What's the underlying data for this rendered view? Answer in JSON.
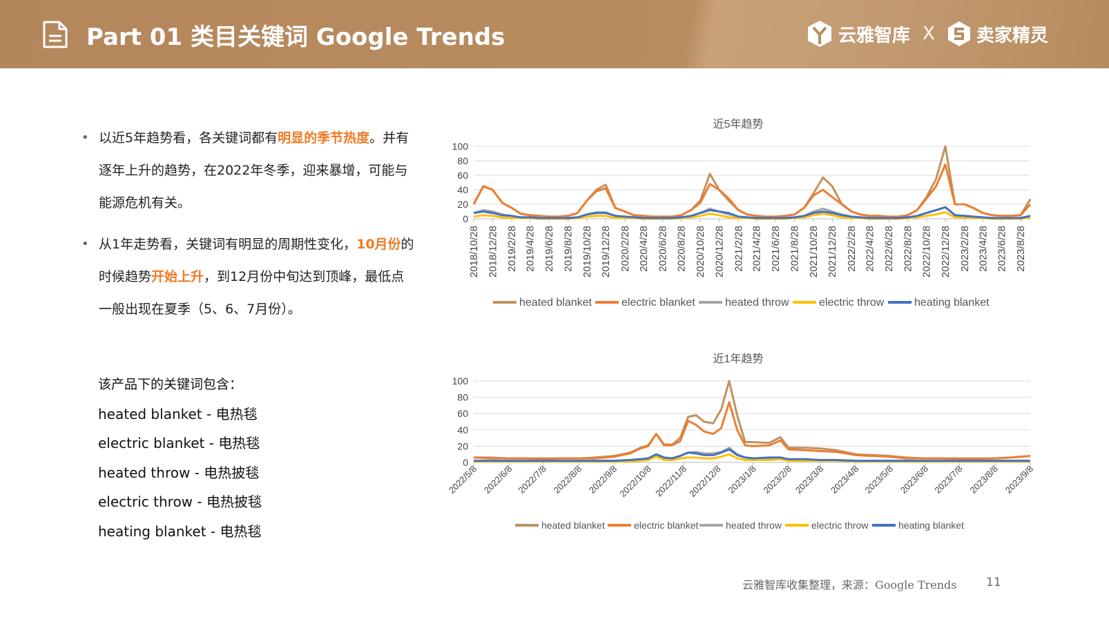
{
  "header": {
    "title": "Part 01 类目关键词 Google Trends",
    "logo_left": "云雅智库",
    "logo_sep": "X",
    "logo_right": "卖家精灵",
    "background_color": "#b78a5c"
  },
  "left": {
    "bullet1": {
      "pre": "以近5年趋势看，各关键词都有",
      "highlight": "明显的季节热度",
      "post": "。并有逐年上升的趋势，在2022年冬季，迎来暴增，可能与能源危机有关。"
    },
    "bullet2": {
      "pre": "从1年走势看，关键词有明显的周期性变化，",
      "highlight1": "10月份",
      "mid": "的时候趋势",
      "highlight2": "开始上升",
      "post": "，到12月份中旬达到顶峰，最低点一般出现在夏季（5、6、7月份）。"
    },
    "keywords_heading": "该产品下的关键词包含：",
    "keywords": [
      "heated blanket - 电热毯",
      "electric blanket - 电热毯",
      "heated throw - 电热披毯",
      "electric throw - 电热披毯",
      "heating blanket - 电热毯"
    ],
    "highlight_color": "#f07a24"
  },
  "footer": {
    "source": "云雅智库收集整理，来源：Google Trends",
    "page": "11"
  },
  "chart_data": [
    {
      "type": "line",
      "title": "近5年趋势",
      "ylim": [
        0,
        100
      ],
      "yticks": [
        0,
        20,
        40,
        60,
        80,
        100
      ],
      "grid": true,
      "legend": "bottom",
      "xticks": [
        "2018/10/28",
        "2018/12/28",
        "2019/2/28",
        "2019/4/28",
        "2019/6/28",
        "2019/8/28",
        "2019/10/28",
        "2019/12/28",
        "2020/2/28",
        "2020/4/28",
        "2020/6/28",
        "2020/8/28",
        "2020/10/28",
        "2020/12/28",
        "2021/2/28",
        "2021/4/28",
        "2021/6/28",
        "2021/8/28",
        "2021/10/28",
        "2021/12/28",
        "2022/2/28",
        "2022/4/28",
        "2022/6/28",
        "2022/8/28",
        "2022/10/28",
        "2022/12/28",
        "2023/2/28",
        "2023/4/28",
        "2023/6/28",
        "2023/8/28"
      ],
      "x_start": "2018/10/28",
      "x_step": "1 month",
      "series": [
        {
          "name": "heated blanket",
          "color": "#c0925f",
          "values": [
            20,
            45,
            40,
            22,
            15,
            7,
            5,
            4,
            3,
            3,
            4,
            8,
            25,
            40,
            47,
            15,
            10,
            5,
            4,
            3,
            3,
            3,
            5,
            12,
            25,
            62,
            40,
            25,
            12,
            6,
            4,
            3,
            3,
            4,
            6,
            15,
            35,
            57,
            45,
            20,
            10,
            6,
            4,
            4,
            3,
            3,
            5,
            12,
            30,
            55,
            100,
            20,
            20,
            15,
            8,
            5,
            4,
            4,
            5,
            27
          ]
        },
        {
          "name": "electric blanket",
          "color": "#ed7d31",
          "values": [
            20,
            45,
            40,
            22,
            15,
            7,
            5,
            4,
            3,
            3,
            4,
            8,
            25,
            38,
            42,
            15,
            10,
            5,
            4,
            3,
            3,
            3,
            5,
            12,
            22,
            48,
            40,
            28,
            12,
            6,
            4,
            3,
            3,
            4,
            6,
            15,
            32,
            40,
            30,
            20,
            10,
            6,
            4,
            4,
            3,
            3,
            5,
            12,
            28,
            45,
            75,
            20,
            20,
            15,
            8,
            5,
            4,
            4,
            5,
            20
          ]
        },
        {
          "name": "heated throw",
          "color": "#a5a5a5",
          "values": [
            8,
            12,
            10,
            6,
            4,
            2,
            2,
            1,
            1,
            1,
            1,
            2,
            6,
            9,
            9,
            4,
            3,
            2,
            1,
            1,
            1,
            1,
            2,
            4,
            8,
            14,
            10,
            6,
            3,
            2,
            1,
            1,
            1,
            1,
            2,
            4,
            10,
            14,
            10,
            6,
            3,
            2,
            1,
            1,
            1,
            1,
            2,
            4,
            8,
            12,
            16,
            5,
            4,
            3,
            2,
            1,
            1,
            1,
            1,
            4
          ]
        },
        {
          "name": "electric throw",
          "color": "#ffc000",
          "values": [
            3,
            5,
            4,
            2,
            1,
            1,
            1,
            0,
            0,
            0,
            0,
            1,
            3,
            4,
            4,
            1,
            1,
            1,
            0,
            0,
            0,
            0,
            1,
            2,
            4,
            7,
            5,
            2,
            1,
            1,
            0,
            0,
            0,
            0,
            1,
            2,
            5,
            7,
            5,
            2,
            1,
            1,
            0,
            0,
            0,
            0,
            1,
            2,
            4,
            6,
            9,
            2,
            2,
            1,
            1,
            0,
            0,
            0,
            0,
            2
          ]
        },
        {
          "name": "heating blanket",
          "color": "#4472c4",
          "values": [
            8,
            10,
            8,
            5,
            4,
            2,
            2,
            1,
            1,
            1,
            1,
            2,
            6,
            8,
            8,
            4,
            3,
            2,
            1,
            1,
            1,
            1,
            2,
            4,
            8,
            12,
            10,
            8,
            3,
            2,
            1,
            1,
            1,
            1,
            2,
            4,
            8,
            10,
            8,
            5,
            3,
            2,
            1,
            1,
            1,
            1,
            2,
            4,
            8,
            12,
            16,
            5,
            4,
            3,
            2,
            1,
            1,
            1,
            1,
            4
          ]
        }
      ]
    },
    {
      "type": "line",
      "title": "近1年趋势",
      "ylim": [
        0,
        100
      ],
      "yticks": [
        0,
        20,
        40,
        60,
        80,
        100
      ],
      "grid": true,
      "legend": "bottom",
      "xticks": [
        "2022/5/8",
        "2022/6/8",
        "2022/7/8",
        "2022/8/8",
        "2022/9/8",
        "2022/10/8",
        "2022/11/8",
        "2022/12/8",
        "2023/1/8",
        "2023/2/8",
        "2023/3/8",
        "2023/4/8",
        "2023/5/8",
        "2023/6/8",
        "2023/7/8",
        "2023/8/8",
        "2023/9/8"
      ],
      "x": [
        "2022/5/8",
        "2022/5/22",
        "2022/6/8",
        "2022/6/22",
        "2022/7/8",
        "2022/7/22",
        "2022/8/8",
        "2022/8/22",
        "2022/9/8",
        "2022/9/22",
        "2022/10/1",
        "2022/10/8",
        "2022/10/15",
        "2022/10/22",
        "2022/10/29",
        "2022/11/5",
        "2022/11/12",
        "2022/11/19",
        "2022/11/26",
        "2022/12/4",
        "2022/12/11",
        "2022/12/18",
        "2022/12/25",
        "2023/1/1",
        "2023/1/8",
        "2023/1/22",
        "2023/2/1",
        "2023/2/8",
        "2023/2/22",
        "2023/3/8",
        "2023/3/22",
        "2023/4/8",
        "2023/4/22",
        "2023/5/8",
        "2023/5/22",
        "2023/6/8",
        "2023/6/22",
        "2023/7/8",
        "2023/7/22",
        "2023/8/8",
        "2023/8/22",
        "2023/9/8"
      ],
      "series": [
        {
          "name": "heated blanket",
          "color": "#c0925f",
          "values": [
            6,
            6,
            5,
            5,
            5,
            5,
            5,
            6,
            8,
            12,
            18,
            21,
            35,
            22,
            22,
            30,
            56,
            58,
            50,
            48,
            65,
            100,
            58,
            25,
            25,
            24,
            31,
            18,
            18,
            17,
            15,
            10,
            9,
            8,
            6,
            5,
            5,
            5,
            5,
            5,
            6,
            8
          ]
        },
        {
          "name": "electric blanket",
          "color": "#ed7d31",
          "values": [
            6,
            5,
            5,
            5,
            4,
            5,
            5,
            5,
            7,
            11,
            17,
            20,
            35,
            21,
            21,
            26,
            51,
            46,
            38,
            35,
            42,
            74,
            40,
            21,
            20,
            21,
            27,
            16,
            15,
            14,
            13,
            9,
            8,
            7,
            5,
            5,
            5,
            4,
            4,
            5,
            6,
            8
          ]
        },
        {
          "name": "heated throw",
          "color": "#a5a5a5",
          "values": [
            2,
            2,
            2,
            2,
            2,
            2,
            2,
            2,
            2,
            3,
            4,
            5,
            9,
            5,
            5,
            8,
            12,
            13,
            11,
            11,
            13,
            18,
            10,
            6,
            5,
            5,
            5,
            3,
            3,
            3,
            3,
            2,
            2,
            2,
            2,
            2,
            2,
            2,
            2,
            2,
            2,
            2
          ]
        },
        {
          "name": "electric throw",
          "color": "#ffc000",
          "values": [
            1,
            1,
            1,
            1,
            1,
            1,
            1,
            1,
            1,
            1,
            2,
            3,
            7,
            3,
            3,
            5,
            6,
            6,
            5,
            5,
            7,
            10,
            5,
            3,
            3,
            3,
            4,
            2,
            2,
            2,
            2,
            1,
            1,
            1,
            1,
            1,
            1,
            1,
            1,
            1,
            1,
            1
          ]
        },
        {
          "name": "heating blanket",
          "color": "#4472c4",
          "values": [
            2,
            2,
            2,
            2,
            2,
            2,
            2,
            2,
            2,
            3,
            4,
            5,
            10,
            6,
            5,
            8,
            12,
            11,
            9,
            9,
            12,
            16,
            9,
            6,
            5,
            6,
            6,
            4,
            4,
            3,
            3,
            2,
            2,
            2,
            2,
            2,
            2,
            2,
            2,
            2,
            2,
            2
          ]
        }
      ]
    }
  ]
}
